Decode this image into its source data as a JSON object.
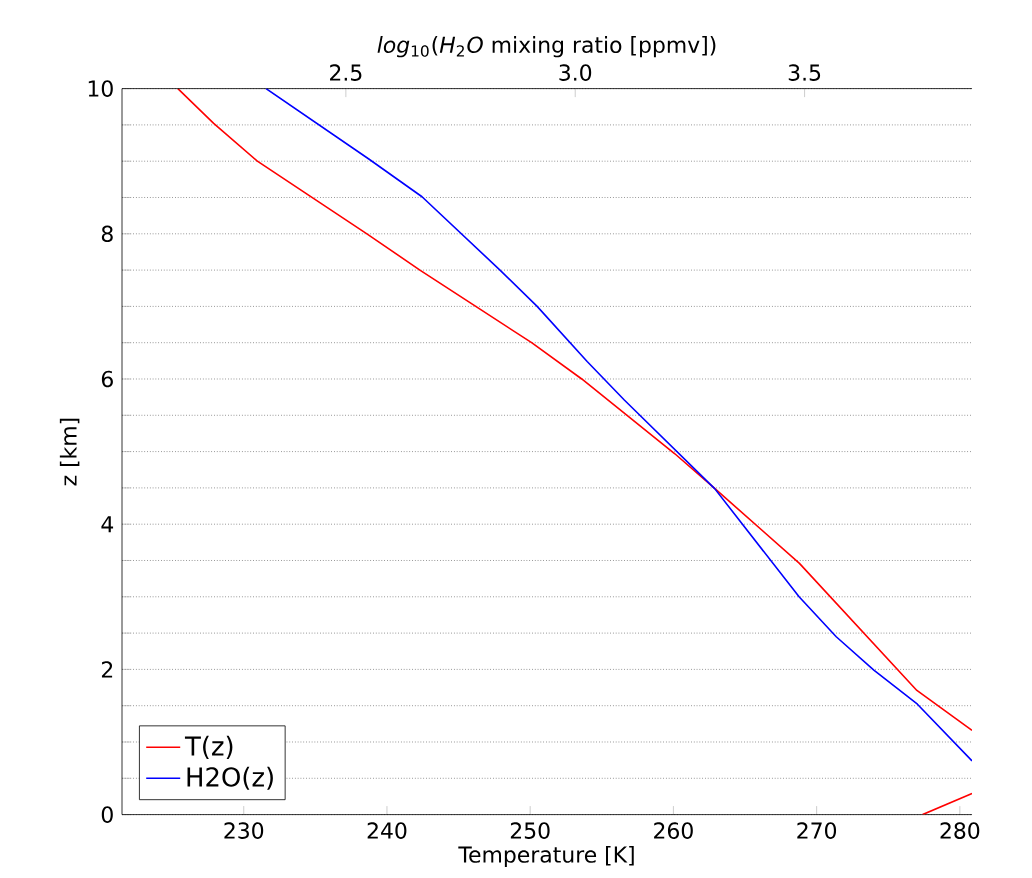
{
  "chart_data": {
    "type": "line",
    "xlabel": "Temperature [K]",
    "ylabel": "z [km]",
    "x2label": "*log*$_{10}$(*H*$_{2}$*O* mixing ratio [ppmv])",
    "xlim": [
      221.5,
      280.85
    ],
    "xticks": [
      230,
      240,
      250,
      260,
      270,
      280
    ],
    "x2lim": [
      2.012,
      3.865
    ],
    "x2ticks": [
      2.5,
      {
        "value": 3,
        "label": "3.0"
      },
      3.5
    ],
    "ylim": [
      0,
      10
    ],
    "yticks": [
      0,
      {
        "value": 0.5,
        "label": null
      },
      {
        "value": 1,
        "label": null
      },
      {
        "value": 1.5,
        "label": null
      },
      2,
      {
        "value": 2.5,
        "label": null
      },
      {
        "value": 3,
        "label": null
      },
      {
        "value": 3.5,
        "label": null
      },
      4,
      {
        "value": 4.5,
        "label": null
      },
      {
        "value": 5,
        "label": null
      },
      {
        "value": 5.5,
        "label": null
      },
      6,
      {
        "value": 6.5,
        "label": null
      },
      {
        "value": 7,
        "label": null
      },
      {
        "value": 7.5,
        "label": null
      },
      8,
      {
        "value": 8.5,
        "label": null
      },
      {
        "value": 9,
        "label": null
      },
      {
        "value": 9.5,
        "label": null
      },
      10
    ],
    "grid": "y",
    "legend": "bottom left",
    "series": [
      {
        "name": "T(z)",
        "color": "#ff0000",
        "x": [
          225.4,
          227.9,
          230.95,
          238.6,
          242.3,
          246.2,
          250.1,
          253.6,
          260.1,
          262.9,
          268.8,
          277.0,
          280.85
        ],
        "values": [
          10,
          9.52,
          9.0,
          8.0,
          7.5,
          7.0,
          6.5,
          6.0,
          4.97,
          4.49,
          3.46,
          1.71,
          1.16
        ]
      },
      {
        "color": "#ff0000",
        "x": [
          277.4,
          280.85
        ],
        "values": [
          0,
          0.29
        ]
      },
      {
        "name": "H2O(z)",
        "color": "#0000ff",
        "axis": "x2",
        "x": [
          2.326,
          2.55,
          2.666,
          2.836,
          2.917,
          3.026,
          3.107,
          3.304,
          3.488,
          3.569,
          3.651,
          3.746,
          3.865
        ],
        "values": [
          10,
          9.03,
          8.51,
          7.5,
          7.0,
          6.24,
          5.71,
          4.49,
          3.0,
          2.45,
          1.99,
          1.52,
          0.74
        ]
      }
    ]
  }
}
